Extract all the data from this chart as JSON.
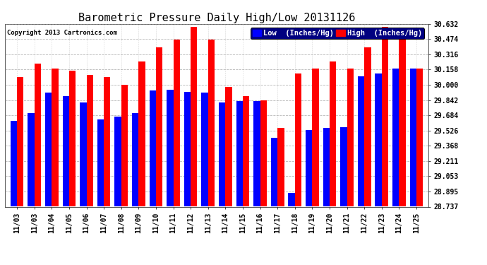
{
  "title": "Barometric Pressure Daily High/Low 20131126",
  "copyright": "Copyright 2013 Cartronics.com",
  "legend_low": "Low  (Inches/Hg)",
  "legend_high": "High  (Inches/Hg)",
  "dates": [
    "11/03",
    "11/03",
    "11/04",
    "11/05",
    "11/06",
    "11/07",
    "11/08",
    "11/09",
    "11/10",
    "11/11",
    "11/12",
    "11/13",
    "11/14",
    "11/15",
    "11/16",
    "11/17",
    "11/18",
    "11/19",
    "11/20",
    "11/21",
    "11/22",
    "11/23",
    "11/24",
    "11/25"
  ],
  "low_values": [
    29.63,
    29.71,
    29.92,
    29.88,
    29.82,
    29.64,
    29.67,
    29.71,
    29.94,
    29.95,
    29.93,
    29.92,
    29.82,
    29.83,
    29.83,
    29.45,
    28.88,
    29.53,
    29.55,
    29.56,
    30.09,
    30.12,
    30.17,
    30.17
  ],
  "high_values": [
    30.08,
    30.22,
    30.17,
    30.15,
    30.1,
    30.08,
    30.0,
    30.24,
    30.39,
    30.47,
    30.6,
    30.47,
    29.98,
    29.88,
    29.84,
    29.55,
    30.12,
    30.17,
    30.24,
    30.17,
    30.39,
    30.6,
    30.58,
    30.17
  ],
  "ylim_min": 28.737,
  "ylim_max": 30.632,
  "yticks": [
    28.737,
    28.895,
    29.053,
    29.211,
    29.368,
    29.526,
    29.684,
    29.842,
    30.0,
    30.158,
    30.316,
    30.474,
    30.632
  ],
  "bar_width": 0.38,
  "low_color": "#0000ff",
  "high_color": "#ff0000",
  "bg_color": "#ffffff",
  "grid_color": "#999999",
  "title_fontsize": 11,
  "tick_fontsize": 7,
  "legend_fontsize": 7.5,
  "legend_bg": "#000080"
}
